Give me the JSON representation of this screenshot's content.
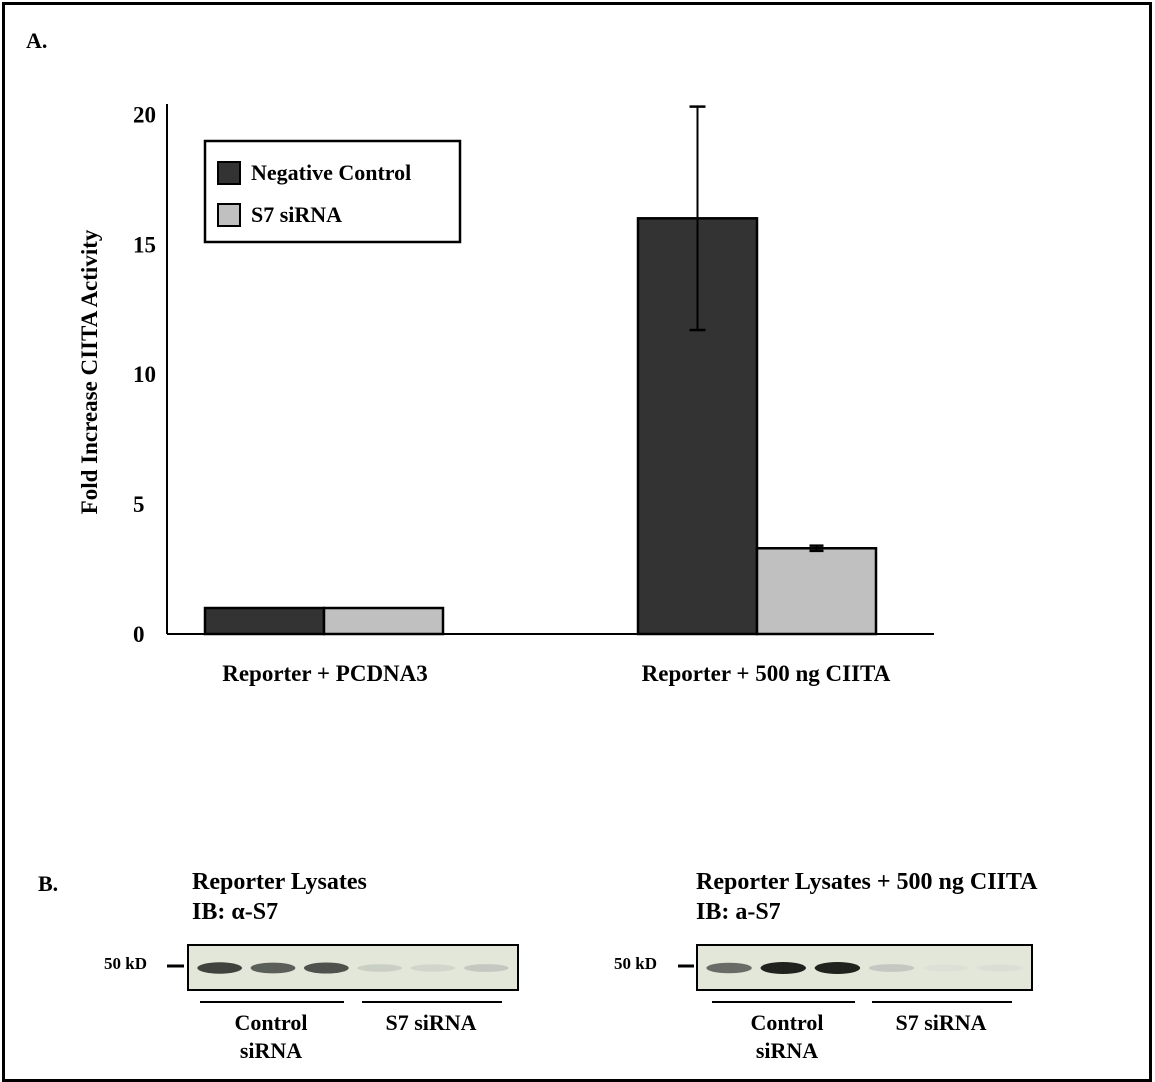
{
  "panel_a_label": "A.",
  "panel_b_label": "B.",
  "chart_data": {
    "type": "bar",
    "title": "",
    "xlabel": "",
    "ylabel": "Fold Increase CIITA Activity",
    "ylim": [
      0,
      20.4
    ],
    "yticks": [
      0,
      5,
      10,
      15,
      20
    ],
    "categories": [
      "Reporter + PCDNA3",
      "Reporter + 500 ng CIITA"
    ],
    "series": [
      {
        "name": "Negative Control",
        "values": [
          1.0,
          16.0
        ],
        "errors": [
          0,
          4.3
        ],
        "color": "#333333"
      },
      {
        "name": "S7 siRNA",
        "values": [
          1.0,
          3.3
        ],
        "errors": [
          0,
          0.1
        ],
        "color": "#c0c0c0"
      }
    ],
    "legend": "top-left",
    "grid": false
  },
  "blots": [
    {
      "title": "Reporter Lysates",
      "ib_label": "IB: α-S7",
      "marker": "50 kD",
      "groups": [
        "Control\nsiRNA",
        "S7 siRNA"
      ],
      "band_intensities": [
        0.9,
        0.8,
        0.85,
        0.25,
        0.2,
        0.3
      ]
    },
    {
      "title": "Reporter Lysates + 500 ng CIITA",
      "ib_label": "IB: a-S7",
      "marker": "50 kD",
      "groups": [
        "Control\nsiRNA",
        "S7 siRNA"
      ],
      "band_intensities": [
        0.75,
        1.0,
        1.0,
        0.3,
        0.1,
        0.12
      ]
    }
  ]
}
